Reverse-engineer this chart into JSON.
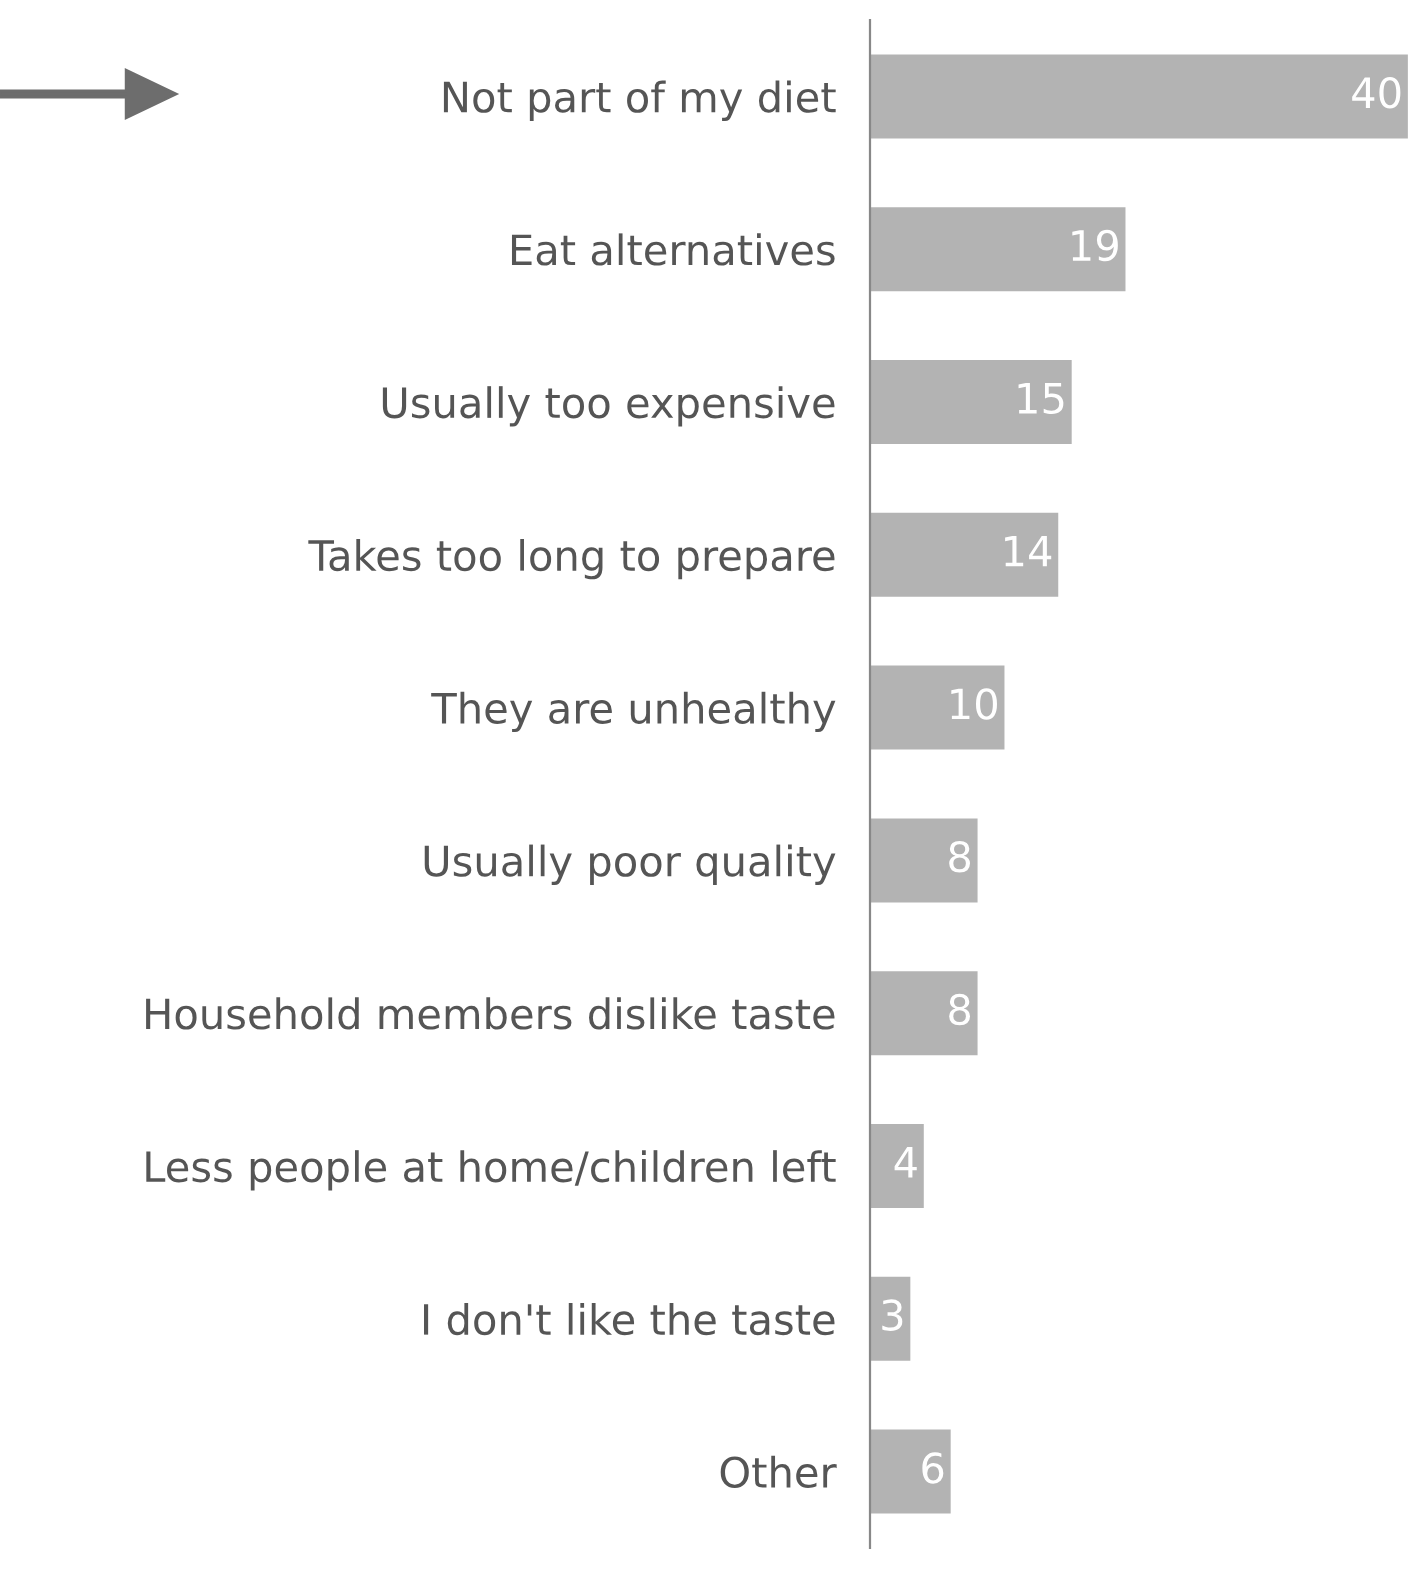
{
  "chart_data": {
    "type": "bar",
    "orientation": "horizontal",
    "categories": [
      "Not part of my diet",
      "Eat alternatives",
      "Usually too expensive",
      "Takes too long to prepare",
      "They are unhealthy",
      "Usually poor quality",
      "Household members dislike taste",
      "Less people at home/children left",
      "I don't like the taste",
      "Other"
    ],
    "values": [
      40,
      19,
      15,
      14,
      10,
      8,
      8,
      4,
      3,
      6
    ],
    "color": "#b3b3b3",
    "data_labels": true,
    "grid": false,
    "legend": false
  }
}
